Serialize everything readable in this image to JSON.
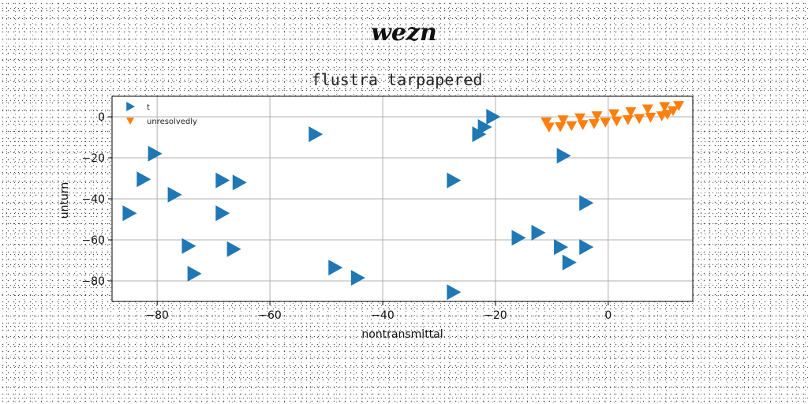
{
  "suptitle": "wezn",
  "chart_data": {
    "type": "scatter",
    "title": "flustra tarpapered",
    "xlabel": "nontransmittal",
    "ylabel": "unturn",
    "xlim": [
      -88,
      15
    ],
    "ylim": [
      -90,
      10
    ],
    "xticks": [
      -80,
      -60,
      -40,
      -20,
      0
    ],
    "yticks": [
      0,
      -20,
      -40,
      -60,
      -80
    ],
    "grid": true,
    "legend_position": "top-left",
    "series": [
      {
        "name": "t",
        "marker": "triangle-right",
        "color": "#1f77b4",
        "points": [
          [
            -52,
            -8.5
          ],
          [
            -20.5,
            0
          ],
          [
            -22,
            -5
          ],
          [
            -23,
            -8.5
          ],
          [
            -80.5,
            -18
          ],
          [
            -82.5,
            -30.5
          ],
          [
            -77,
            -38
          ],
          [
            -85,
            -47
          ],
          [
            -68.5,
            -31
          ],
          [
            -65.5,
            -32
          ],
          [
            -68.5,
            -47
          ],
          [
            -27.5,
            -31
          ],
          [
            -8,
            -19
          ],
          [
            -4,
            -42
          ],
          [
            -16,
            -59
          ],
          [
            -12.5,
            -56.5
          ],
          [
            -8.5,
            -63.5
          ],
          [
            -4,
            -63.5
          ],
          [
            -7,
            -71
          ],
          [
            -74.5,
            -63
          ],
          [
            -66.5,
            -64.5
          ],
          [
            -73.5,
            -76.5
          ],
          [
            -48.5,
            -73.5
          ],
          [
            -44.5,
            -78.5
          ],
          [
            -27.5,
            -85.5
          ]
        ]
      },
      {
        "name": "unresolvedly",
        "marker": "triangle-down",
        "color": "#ff7f0e",
        "points": [
          [
            -10.5,
            -5
          ],
          [
            -8.5,
            -4.8
          ],
          [
            -6.5,
            -4.3
          ],
          [
            -4.5,
            -3.8
          ],
          [
            -2.5,
            -3.3
          ],
          [
            -0.5,
            -2.6
          ],
          [
            1.5,
            -2
          ],
          [
            3.5,
            -1.4
          ],
          [
            5.5,
            -0.8
          ],
          [
            7.5,
            -0.2
          ],
          [
            9.5,
            0.5
          ],
          [
            10.5,
            1.2
          ],
          [
            11.5,
            3
          ],
          [
            12.5,
            5.5
          ],
          [
            -11,
            -2.5
          ],
          [
            -8,
            -1.5
          ],
          [
            -5,
            -0.5
          ],
          [
            -2,
            0.5
          ],
          [
            1,
            1.5
          ],
          [
            4,
            2.5
          ],
          [
            7,
            3.8
          ],
          [
            10,
            5
          ]
        ]
      }
    ]
  }
}
